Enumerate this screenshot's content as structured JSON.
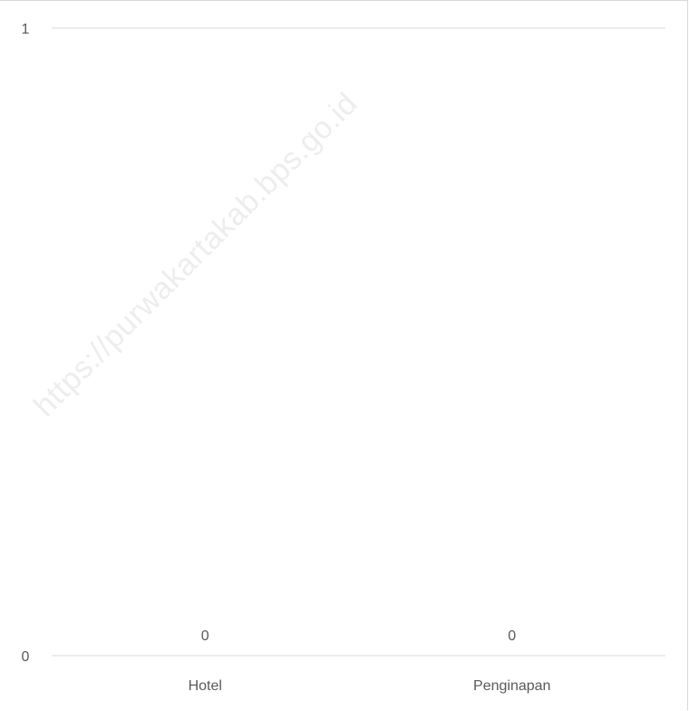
{
  "watermark": {
    "text": "https://purwakartakab.bps.go.id"
  },
  "chart_data": {
    "type": "bar",
    "categories": [
      "Hotel",
      "Penginapan"
    ],
    "values": [
      0,
      0
    ],
    "data_labels": [
      "0",
      "0"
    ],
    "ylim": [
      0,
      1
    ],
    "yticks": [
      0,
      1
    ],
    "ytick_labels": [
      "0",
      "1"
    ],
    "grid": true,
    "legend": "none",
    "colors": {
      "gridline": "#d9d9d9",
      "axis": "#d9d9d9",
      "text": "#595959",
      "bar": "#4472c4"
    }
  }
}
